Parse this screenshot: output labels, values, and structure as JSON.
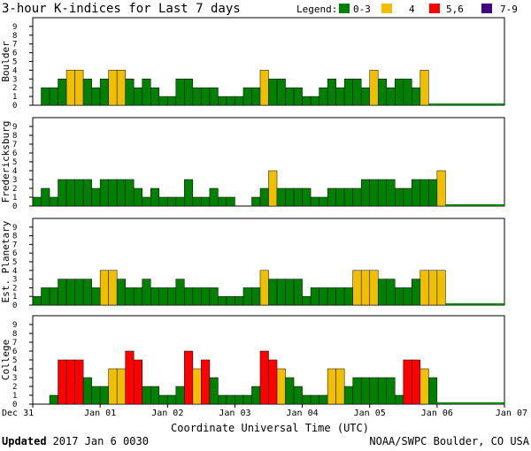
{
  "chart_data": {
    "type": "bar",
    "title": "3-hour K-indices for Last 7 days",
    "legend": {
      "title": "Legend:",
      "entries": [
        {
          "label": "0-3",
          "color": "#008000"
        },
        {
          "label": "4",
          "color": "#f0c000"
        },
        {
          "label": "5,6",
          "color": "#ff0000"
        },
        {
          "label": "7-9",
          "color": "#400080"
        }
      ]
    },
    "ylim": [
      0,
      9
    ],
    "yticks": [
      "0",
      "1",
      "2",
      "3",
      "4",
      "5",
      "6",
      "7",
      "8",
      "9"
    ],
    "xlabel": "Coordinate Universal Time (UTC)",
    "xticks": [
      "Dec 31",
      "Jan 01",
      "Jan 02",
      "Jan 03",
      "Jan 04",
      "Jan 05",
      "Jan 06",
      "Jan 07"
    ],
    "series": [
      {
        "name": "Boulder",
        "values": [
          0,
          2,
          2,
          3,
          4,
          4,
          3,
          2,
          3,
          4,
          4,
          3,
          2,
          3,
          2,
          1,
          1,
          3,
          3,
          2,
          2,
          2,
          1,
          1,
          1,
          2,
          2,
          4,
          3,
          3,
          2,
          2,
          1,
          1,
          2,
          3,
          2,
          3,
          3,
          2,
          4,
          3,
          2,
          3,
          3,
          2,
          4
        ]
      },
      {
        "name": "Fredericksburg",
        "values": [
          1,
          2,
          1,
          3,
          3,
          3,
          3,
          2,
          3,
          3,
          3,
          3,
          2,
          1,
          2,
          1,
          1,
          1,
          3,
          1,
          1,
          2,
          1,
          1,
          0,
          0,
          1,
          2,
          4,
          2,
          2,
          2,
          2,
          1,
          1,
          2,
          2,
          2,
          2,
          3,
          3,
          3,
          3,
          2,
          2,
          3,
          3,
          3,
          4
        ]
      },
      {
        "name": "Est. Planetary",
        "values": [
          1,
          2,
          2,
          3,
          3,
          3,
          3,
          2,
          4,
          4,
          3,
          2,
          2,
          3,
          2,
          2,
          2,
          3,
          2,
          2,
          2,
          2,
          1,
          1,
          1,
          2,
          2,
          4,
          3,
          3,
          3,
          3,
          1,
          2,
          2,
          2,
          2,
          2,
          4,
          4,
          4,
          3,
          3,
          2,
          2,
          3,
          4,
          4,
          4
        ]
      },
      {
        "name": "College",
        "values": [
          0,
          0,
          1,
          5,
          5,
          5,
          3,
          2,
          2,
          4,
          4,
          6,
          5,
          2,
          2,
          1,
          1,
          2,
          6,
          4,
          5,
          3,
          1,
          1,
          1,
          1,
          2,
          6,
          5,
          4,
          3,
          2,
          1,
          1,
          1,
          4,
          4,
          2,
          3,
          3,
          3,
          3,
          3,
          1,
          5,
          5,
          4,
          3
        ]
      }
    ]
  },
  "footer": {
    "updated_label": "Updated",
    "updated_value": "2017 Jan  6 0030",
    "source": "NOAA/SWPC Boulder, CO USA"
  }
}
